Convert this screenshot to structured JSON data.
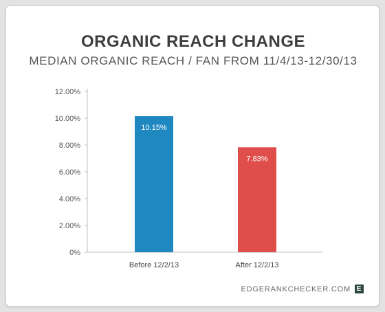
{
  "chart_data": {
    "type": "bar",
    "title": "ORGANIC REACH CHANGE",
    "subtitle": "MEDIAN ORGANIC REACH / FAN FROM 11/4/13-12/30/13",
    "categories": [
      "Before 12/2/13",
      "After 12/2/13"
    ],
    "values": [
      10.15,
      7.83
    ],
    "value_labels": [
      "10.15%",
      "7.83%"
    ],
    "colors": [
      "#1f88c0",
      "#e04e4b"
    ],
    "ylim": [
      0,
      12
    ],
    "yticks": [
      0,
      2,
      4,
      6,
      8,
      10,
      12
    ],
    "ytick_labels": [
      "0%",
      "2.00%",
      "4.00%",
      "6.00%",
      "8.00%",
      "10.00%",
      "12.00%"
    ],
    "grid": false
  },
  "footer": {
    "brand": "EDGERANKCHECKER.COM",
    "logo_letter": "E"
  }
}
